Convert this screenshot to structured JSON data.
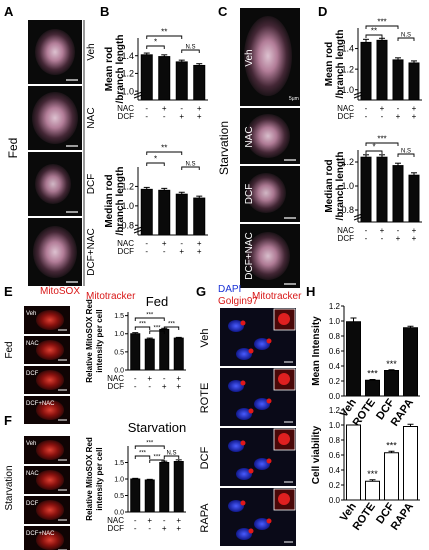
{
  "panels": {
    "A": "A",
    "B": "B",
    "C": "C",
    "D": "D",
    "E": "E",
    "F": "F",
    "G": "G",
    "H": "H"
  },
  "labels": {
    "fed": "Fed",
    "starvation": "Starvation",
    "mitotracker": "Mitotracker",
    "mitosox": "MitoSOX",
    "dapi": "DAPI",
    "golgin97": "Golgin97"
  },
  "tiles": {
    "ac": [
      "Veh",
      "NAC",
      "DCF",
      "DCF+NAC"
    ],
    "ef": [
      "Veh",
      "NAC",
      "DCF",
      "DCF+NAC"
    ],
    "g": [
      "Veh",
      "ROTE",
      "DCF",
      "RAPA"
    ]
  },
  "treatment_rows": {
    "nac_label": "NAC",
    "dcf_label": "DCF",
    "nac": [
      "-",
      "+",
      "-",
      "+"
    ],
    "dcf": [
      "-",
      "-",
      "+",
      "+"
    ]
  },
  "colors": {
    "mito_red": "#d81818",
    "dapi_blue": "#1a32d6",
    "bar": "#0a0a0a",
    "bar_open": "#ffffff"
  },
  "chart_data": [
    {
      "id": "B-top",
      "type": "bar",
      "ylabel": "Mean rod /branch length",
      "ylim": [
        0,
        1.6
      ],
      "yticks": [
        "1.0",
        "1.2",
        "1.4"
      ],
      "values": [
        1.41,
        1.39,
        1.33,
        1.29
      ],
      "errors": [
        0.02,
        0.02,
        0.02,
        0.02
      ],
      "significance": [
        "**",
        "*",
        "N.S"
      ]
    },
    {
      "id": "B-bottom",
      "type": "bar",
      "ylabel": "Median rod /branch length",
      "ylim": [
        0,
        1.4
      ],
      "yticks": [
        "0.8",
        "1.0",
        "1.2"
      ],
      "values": [
        1.17,
        1.16,
        1.12,
        1.08
      ],
      "errors": [
        0.02,
        0.02,
        0.02,
        0.02
      ],
      "significance": [
        "**",
        "*",
        "N.S"
      ]
    },
    {
      "id": "D-top",
      "type": "bar",
      "ylabel": "Mean rod /branch length",
      "ylim": [
        0,
        1.6
      ],
      "yticks": [
        "1.0",
        "1.2",
        "1.4"
      ],
      "values": [
        1.46,
        1.48,
        1.29,
        1.26
      ],
      "errors": [
        0.03,
        0.02,
        0.02,
        0.02
      ],
      "significance": [
        "***",
        "**",
        "N.S"
      ]
    },
    {
      "id": "D-bottom",
      "type": "bar",
      "ylabel": "Median rod /branch length",
      "ylim": [
        0,
        1.3
      ],
      "yticks": [
        "0.8",
        "1.0",
        "1.2"
      ],
      "values": [
        1.24,
        1.24,
        1.17,
        1.09
      ],
      "errors": [
        0.02,
        0.02,
        0.02,
        0.02
      ],
      "significance": [
        "***",
        "*",
        "N.S"
      ]
    },
    {
      "id": "E",
      "type": "bar",
      "title": "Fed",
      "ylabel": "Relative MitoSOX Red intensity per cell",
      "ylim": [
        0,
        1.6
      ],
      "yticks": [
        "0.0",
        "0.5",
        "1.0",
        "1.5"
      ],
      "values": [
        1.0,
        0.85,
        1.12,
        0.88
      ],
      "errors": [
        0.03,
        0.03,
        0.03,
        0.02
      ],
      "significance": [
        "***",
        "***",
        "***",
        "***"
      ]
    },
    {
      "id": "F",
      "type": "bar",
      "title": "Starvation",
      "ylabel": "Relative MitoSOX Red intensity per cell",
      "ylim": [
        0,
        2.0
      ],
      "yticks": [
        "0.0",
        "0.5",
        "1.0",
        "1.5"
      ],
      "values": [
        1.0,
        0.97,
        1.5,
        1.53
      ],
      "errors": [
        0.02,
        0.02,
        0.04,
        0.05
      ],
      "significance": [
        "***",
        "***",
        "***",
        "N.S"
      ]
    },
    {
      "id": "H-top",
      "type": "bar",
      "ylabel": "Mean Intensity",
      "categories": [
        "Veh",
        "ROTE",
        "DCF",
        "RAPA"
      ],
      "ylim": [
        0,
        1.2
      ],
      "yticks": [
        "0.0",
        "0.2",
        "0.4",
        "0.6",
        "0.8",
        "1.0",
        "1.2"
      ],
      "values": [
        0.99,
        0.21,
        0.34,
        0.91
      ],
      "errors": [
        0.05,
        0.01,
        0.01,
        0.02
      ],
      "significance": [
        "",
        "***",
        "***",
        ""
      ]
    },
    {
      "id": "H-bottom",
      "type": "bar",
      "ylabel": "Cell viability",
      "categories": [
        "Veh",
        "ROTE",
        "DCF",
        "RAPA"
      ],
      "ylim": [
        0,
        1.2
      ],
      "yticks": [
        "0.0",
        "0.2",
        "0.4",
        "0.6",
        "0.8",
        "1.0",
        "1.2"
      ],
      "values": [
        1.0,
        0.25,
        0.63,
        0.98
      ],
      "errors": [
        0.0,
        0.02,
        0.02,
        0.03
      ],
      "significance": [
        "",
        "***",
        "***",
        ""
      ]
    }
  ]
}
